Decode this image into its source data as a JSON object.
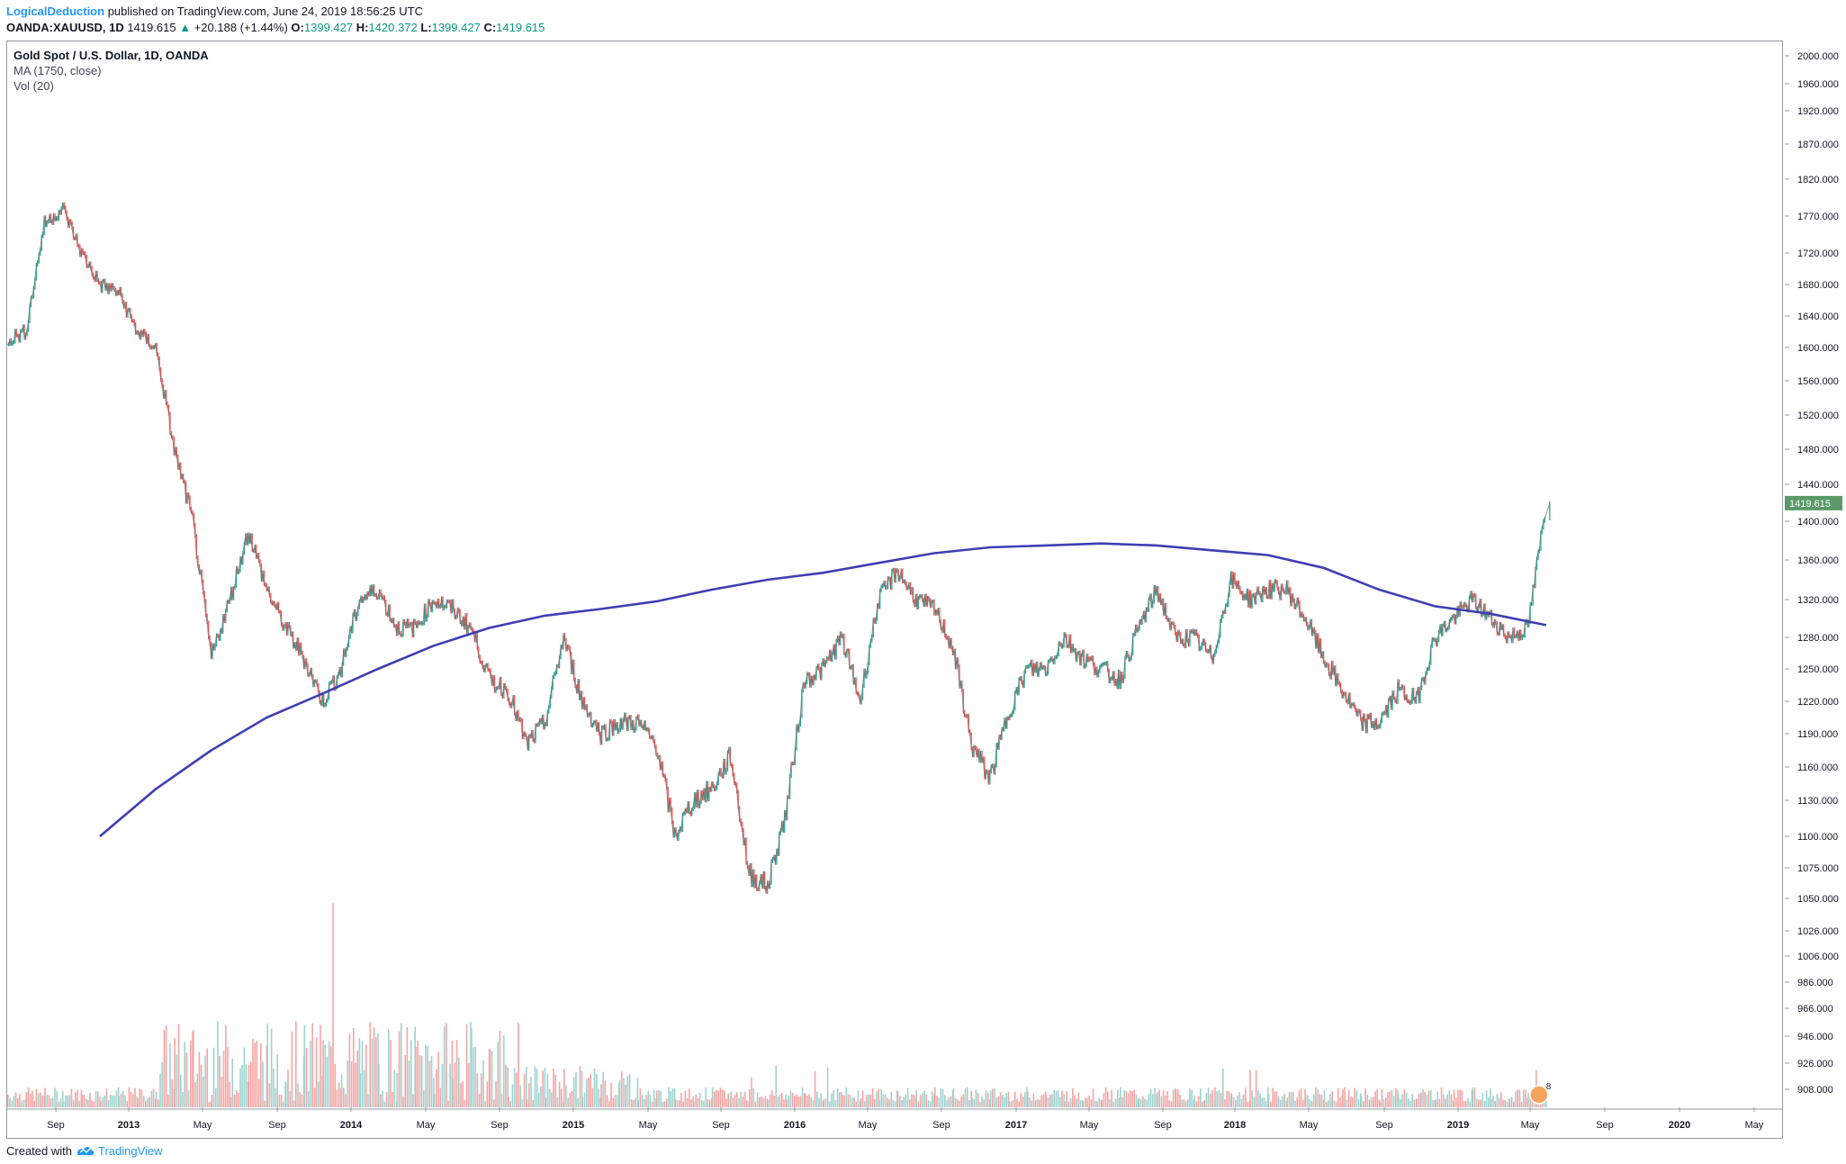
{
  "header": {
    "author": "LogicalDeduction",
    "published": "published on TradingView.com, June 24, 2019 18:56:25 UTC",
    "symbol": "OANDA:XAUUSD, 1D",
    "last": "1419.615",
    "change_arrow": "▲",
    "change": "+20.188 (+1.44%)",
    "o_label": "O:",
    "o_value": "1399.427",
    "h_label": "H:",
    "h_value": "1420.372",
    "l_label": "L:",
    "l_value": "1399.427",
    "c_label": "C:",
    "c_value": "1419.615"
  },
  "legend": {
    "title": "Gold Spot / U.S. Dollar, 1D, OANDA",
    "ma": "MA (1750, close)",
    "vol": "Vol (20)"
  },
  "footer": {
    "created_with": "Created with",
    "brand": "TradingView",
    "logo_icon": "tradingview-logo-icon"
  },
  "colors": {
    "up": "#26a69a",
    "down": "#ef5350",
    "ma": "#3f3fb3",
    "price_tag": "#5b9a68",
    "vol_up": "#9fd3cf",
    "vol_down": "#f6a5a4"
  },
  "chart_data": {
    "type": "line",
    "series": [
      {
        "name": "Gold Spot / U.S. Dollar, 1D, OANDA",
        "x": [
          "2012-07",
          "2012-08",
          "2012-09",
          "2012-10",
          "2012-11",
          "2012-12",
          "2013-01",
          "2013-02",
          "2013-03",
          "2013-04",
          "2013-05",
          "2013-06",
          "2013-07",
          "2013-08",
          "2013-09",
          "2013-10",
          "2013-11",
          "2013-12",
          "2014-01",
          "2014-02",
          "2014-03",
          "2014-04",
          "2014-05",
          "2014-06",
          "2014-07",
          "2014-08",
          "2014-09",
          "2014-10",
          "2014-11",
          "2014-12",
          "2015-01",
          "2015-02",
          "2015-03",
          "2015-04",
          "2015-05",
          "2015-06",
          "2015-07",
          "2015-08",
          "2015-09",
          "2015-10",
          "2015-11",
          "2015-12",
          "2016-01",
          "2016-02",
          "2016-03",
          "2016-04",
          "2016-05",
          "2016-06",
          "2016-07",
          "2016-08",
          "2016-09",
          "2016-10",
          "2016-11",
          "2016-12",
          "2017-01",
          "2017-02",
          "2017-03",
          "2017-04",
          "2017-05",
          "2017-06",
          "2017-07",
          "2017-08",
          "2017-09",
          "2017-10",
          "2017-11",
          "2017-12",
          "2018-01",
          "2018-02",
          "2018-03",
          "2018-04",
          "2018-05",
          "2018-06",
          "2018-07",
          "2018-08",
          "2018-09",
          "2018-10",
          "2018-11",
          "2018-12",
          "2019-01",
          "2019-02",
          "2019-03",
          "2019-04",
          "2019-05",
          "2019-06"
        ],
        "values": [
          1610,
          1620,
          1760,
          1780,
          1720,
          1680,
          1670,
          1620,
          1600,
          1480,
          1400,
          1260,
          1320,
          1390,
          1330,
          1290,
          1260,
          1220,
          1250,
          1320,
          1330,
          1290,
          1290,
          1320,
          1310,
          1290,
          1240,
          1230,
          1180,
          1200,
          1280,
          1220,
          1190,
          1200,
          1200,
          1180,
          1100,
          1130,
          1140,
          1170,
          1070,
          1060,
          1120,
          1240,
          1250,
          1280,
          1220,
          1320,
          1350,
          1320,
          1310,
          1270,
          1180,
          1150,
          1210,
          1250,
          1250,
          1280,
          1260,
          1250,
          1240,
          1290,
          1330,
          1280,
          1280,
          1260,
          1340,
          1320,
          1330,
          1330,
          1300,
          1260,
          1230,
          1200,
          1200,
          1230,
          1220,
          1280,
          1300,
          1320,
          1300,
          1280,
          1290,
          1419.615
        ]
      },
      {
        "name": "MA (1750, close)",
        "x": [
          "2012-12",
          "2013-03",
          "2013-06",
          "2013-09",
          "2013-12",
          "2014-03",
          "2014-06",
          "2014-09",
          "2014-12",
          "2015-03",
          "2015-06",
          "2015-09",
          "2015-12",
          "2016-03",
          "2016-06",
          "2016-09",
          "2016-12",
          "2017-03",
          "2017-06",
          "2017-09",
          "2017-12",
          "2018-03",
          "2018-06",
          "2018-09",
          "2018-12",
          "2019-03",
          "2019-06"
        ],
        "values": [
          1100,
          1140,
          1175,
          1205,
          1227,
          1250,
          1272,
          1290,
          1303,
          1310,
          1318,
          1330,
          1340,
          1347,
          1357,
          1367,
          1373,
          1375,
          1377,
          1375,
          1370,
          1365,
          1352,
          1330,
          1313,
          1305,
          1293
        ]
      }
    ],
    "y_ticks": [
      2000,
      1960,
      1920,
      1870,
      1820,
      1770,
      1720,
      1680,
      1640,
      1600,
      1560,
      1520,
      1480,
      1440,
      1400,
      1360,
      1320,
      1280,
      1250,
      1220,
      1190,
      1160,
      1130,
      1100,
      1075,
      1050,
      1026,
      1006,
      986,
      966,
      946,
      926,
      908
    ],
    "x_ticks": [
      "Sep",
      "2013",
      "May",
      "Sep",
      "2014",
      "May",
      "Sep",
      "2015",
      "May",
      "Sep",
      "2016",
      "May",
      "Sep",
      "2017",
      "May",
      "Sep",
      "2018",
      "May",
      "Sep",
      "2019",
      "May",
      "Sep",
      "2020",
      "May"
    ],
    "price_tag": "1419.615",
    "volume_marker": "8",
    "grid": false
  }
}
